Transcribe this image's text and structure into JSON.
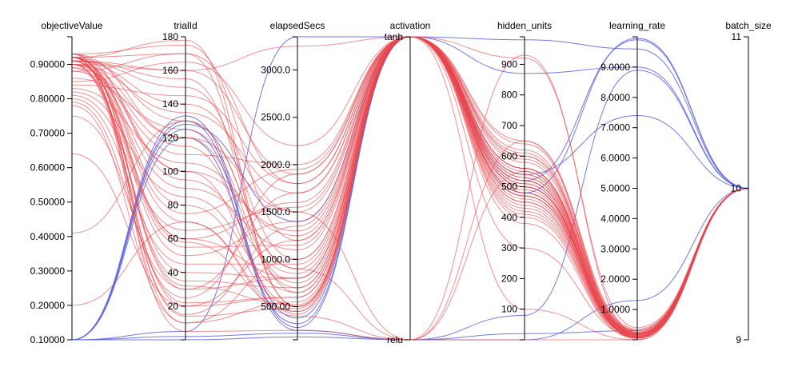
{
  "chart_data": {
    "type": "parallel_coordinates",
    "colors": {
      "good_trials": "#e8464c",
      "poor_trials": "#5b63e0"
    },
    "axes": [
      {
        "key": "objectiveValue",
        "label": "objectiveValue",
        "kind": "numeric",
        "range": [
          0.1,
          0.98
        ],
        "ticks": [
          {
            "v": 0.1,
            "t": "0.10000"
          },
          {
            "v": 0.2,
            "t": "0.20000"
          },
          {
            "v": 0.3,
            "t": "0.30000"
          },
          {
            "v": 0.4,
            "t": "0.40000"
          },
          {
            "v": 0.5,
            "t": "0.50000"
          },
          {
            "v": 0.6,
            "t": "0.60000"
          },
          {
            "v": 0.7,
            "t": "0.70000"
          },
          {
            "v": 0.8,
            "t": "0.80000"
          },
          {
            "v": 0.9,
            "t": "0.90000"
          }
        ]
      },
      {
        "key": "trialId",
        "label": "trialId",
        "kind": "numeric",
        "range": [
          0,
          180
        ],
        "ticks": [
          {
            "v": 20,
            "t": "20"
          },
          {
            "v": 40,
            "t": "40"
          },
          {
            "v": 60,
            "t": "60"
          },
          {
            "v": 80,
            "t": "80"
          },
          {
            "v": 100,
            "t": "100"
          },
          {
            "v": 120,
            "t": "120"
          },
          {
            "v": 140,
            "t": "140"
          },
          {
            "v": 160,
            "t": "160"
          },
          {
            "v": 180,
            "t": "180"
          }
        ]
      },
      {
        "key": "elapsedSecs",
        "label": "elapsedSecs",
        "kind": "numeric",
        "range": [
          150,
          3350
        ],
        "ticks": [
          {
            "v": 500,
            "t": "500.00"
          },
          {
            "v": 1000,
            "t": "1000.0"
          },
          {
            "v": 1500,
            "t": "1500.0"
          },
          {
            "v": 2000,
            "t": "2000.0"
          },
          {
            "v": 2500,
            "t": "2500.0"
          },
          {
            "v": 3000,
            "t": "3000.0"
          }
        ]
      },
      {
        "key": "activation",
        "label": "activation",
        "kind": "categorical",
        "categories": [
          "relu",
          "tanh"
        ],
        "ticks": [
          {
            "v": 0,
            "t": "relu"
          },
          {
            "v": 1,
            "t": "tanh"
          }
        ]
      },
      {
        "key": "hidden_units",
        "label": "hidden_units",
        "kind": "numeric",
        "range": [
          0,
          990
        ],
        "ticks": [
          {
            "v": 100,
            "t": "100"
          },
          {
            "v": 200,
            "t": "200"
          },
          {
            "v": 300,
            "t": "300"
          },
          {
            "v": 400,
            "t": "400"
          },
          {
            "v": 500,
            "t": "500"
          },
          {
            "v": 600,
            "t": "600"
          },
          {
            "v": 700,
            "t": "700"
          },
          {
            "v": 800,
            "t": "800"
          },
          {
            "v": 900,
            "t": "900"
          }
        ]
      },
      {
        "key": "learning_rate",
        "label": "learning_rate",
        "kind": "numeric",
        "range": [
          0,
          10
        ],
        "ticks": [
          {
            "v": 1,
            "t": "1.0000"
          },
          {
            "v": 2,
            "t": "2.0000"
          },
          {
            "v": 3,
            "t": "3.0000"
          },
          {
            "v": 4,
            "t": "4.0000"
          },
          {
            "v": 5,
            "t": "5.0000"
          },
          {
            "v": 6,
            "t": "6.0000"
          },
          {
            "v": 7,
            "t": "7.0000"
          },
          {
            "v": 8,
            "t": "8.0000"
          },
          {
            "v": 9,
            "t": "9.0000"
          }
        ]
      },
      {
        "key": "batch_size",
        "label": "batch_size",
        "kind": "numeric",
        "range": [
          9,
          11
        ],
        "ticks": [
          {
            "v": 9,
            "t": "9"
          },
          {
            "v": 10,
            "t": "10"
          },
          {
            "v": 11,
            "t": "11"
          }
        ]
      }
    ],
    "series": [
      {
        "color": "poor_trials",
        "rows": [
          [
            0.1,
            128,
            1400,
            1,
            520,
            9.9,
            10
          ],
          [
            0.1,
            125,
            380,
            1,
            980,
            9.6,
            10
          ],
          [
            0.1,
            5,
            3350,
            1,
            870,
            9.0,
            10
          ],
          [
            0.1,
            130,
            250,
            0,
            80,
            8.9,
            10
          ],
          [
            0.1,
            133,
            280,
            1,
            540,
            7.4,
            10
          ],
          [
            0.1,
            0,
            180,
            0,
            0,
            1.3,
            10
          ],
          [
            0.1,
            2,
            220,
            0,
            20,
            0.3,
            10
          ],
          [
            0.1,
            120,
            320,
            1,
            480,
            9.95,
            10
          ]
        ]
      },
      {
        "color": "good_trials",
        "rows": [
          [
            0.92,
            170,
            1800,
            1,
            600,
            0.2,
            10
          ],
          [
            0.91,
            150,
            1000,
            1,
            520,
            0.1,
            10
          ],
          [
            0.93,
            120,
            700,
            1,
            480,
            0.3,
            10
          ],
          [
            0.9,
            100,
            1300,
            1,
            560,
            0.15,
            10
          ],
          [
            0.92,
            80,
            500,
            1,
            450,
            0.1,
            10
          ],
          [
            0.91,
            60,
            1600,
            1,
            540,
            0.2,
            10
          ],
          [
            0.89,
            40,
            800,
            1,
            400,
            0.05,
            10
          ],
          [
            0.92,
            20,
            600,
            1,
            500,
            0.12,
            10
          ],
          [
            0.93,
            175,
            1200,
            1,
            620,
            0.25,
            10
          ],
          [
            0.9,
            160,
            1900,
            1,
            580,
            0.18,
            10
          ],
          [
            0.91,
            140,
            1500,
            1,
            510,
            0.08,
            10
          ],
          [
            0.92,
            130,
            900,
            1,
            470,
            0.22,
            10
          ],
          [
            0.88,
            110,
            2000,
            1,
            640,
            0.3,
            10
          ],
          [
            0.9,
            90,
            1100,
            1,
            430,
            0.1,
            10
          ],
          [
            0.92,
            70,
            450,
            1,
            520,
            0.16,
            10
          ],
          [
            0.91,
            50,
            1400,
            1,
            560,
            0.05,
            10
          ],
          [
            0.93,
            30,
            1700,
            1,
            490,
            0.2,
            10
          ],
          [
            0.9,
            10,
            550,
            1,
            410,
            0.1,
            10
          ],
          [
            0.85,
            165,
            2200,
            1,
            650,
            0.35,
            10
          ],
          [
            0.84,
            145,
            1800,
            1,
            600,
            0.3,
            10
          ],
          [
            0.86,
            125,
            750,
            1,
            500,
            0.2,
            10
          ],
          [
            0.83,
            105,
            1250,
            1,
            450,
            0.15,
            10
          ],
          [
            0.82,
            85,
            650,
            1,
            420,
            0.1,
            10
          ],
          [
            0.81,
            65,
            1550,
            1,
            530,
            0.25,
            10
          ],
          [
            0.8,
            45,
            950,
            1,
            470,
            0.12,
            10
          ],
          [
            0.79,
            25,
            1900,
            1,
            560,
            0.3,
            10
          ],
          [
            0.92,
            178,
            500,
            1,
            380,
            0.05,
            10
          ],
          [
            0.91,
            155,
            650,
            1,
            610,
            0.2,
            10
          ],
          [
            0.9,
            135,
            1700,
            1,
            520,
            0.1,
            10
          ],
          [
            0.89,
            115,
            420,
            1,
            460,
            0.18,
            10
          ],
          [
            0.93,
            95,
            850,
            1,
            500,
            0.08,
            10
          ],
          [
            0.92,
            75,
            1950,
            1,
            590,
            0.22,
            10
          ],
          [
            0.91,
            55,
            1150,
            1,
            440,
            0.15,
            10
          ],
          [
            0.9,
            35,
            700,
            1,
            480,
            0.3,
            10
          ],
          [
            0.92,
            15,
            1350,
            1,
            530,
            0.1,
            10
          ],
          [
            0.92,
            100,
            500,
            1,
            500,
            0.2,
            10
          ],
          [
            0.91,
            58,
            450,
            1,
            470,
            0.1,
            10
          ],
          [
            0.93,
            32,
            520,
            1,
            540,
            0.15,
            10
          ],
          [
            0.92,
            14,
            480,
            1,
            510,
            0.05,
            10
          ],
          [
            0.9,
            22,
            600,
            1,
            560,
            0.25,
            10
          ],
          [
            0.64,
            20,
            1200,
            1,
            500,
            0.2,
            10
          ],
          [
            0.41,
            130,
            900,
            0,
            550,
            0.1,
            10
          ],
          [
            0.2,
            70,
            400,
            0,
            930,
            0.2,
            10
          ],
          [
            0.92,
            5,
            250,
            0,
            0,
            0.0,
            10
          ],
          [
            0.91,
            160,
            3250,
            1,
            100,
            0.0,
            10
          ],
          [
            0.92,
            60,
            800,
            1,
            920,
            0.4,
            10
          ],
          [
            0.9,
            120,
            1500,
            0,
            650,
            0.15,
            10
          ],
          [
            0.88,
            170,
            500,
            1,
            300,
            0.1,
            10
          ],
          [
            0.78,
            10,
            1000,
            1,
            550,
            0.2,
            10
          ],
          [
            0.75,
            30,
            800,
            1,
            480,
            0.1,
            10
          ]
        ]
      }
    ]
  }
}
